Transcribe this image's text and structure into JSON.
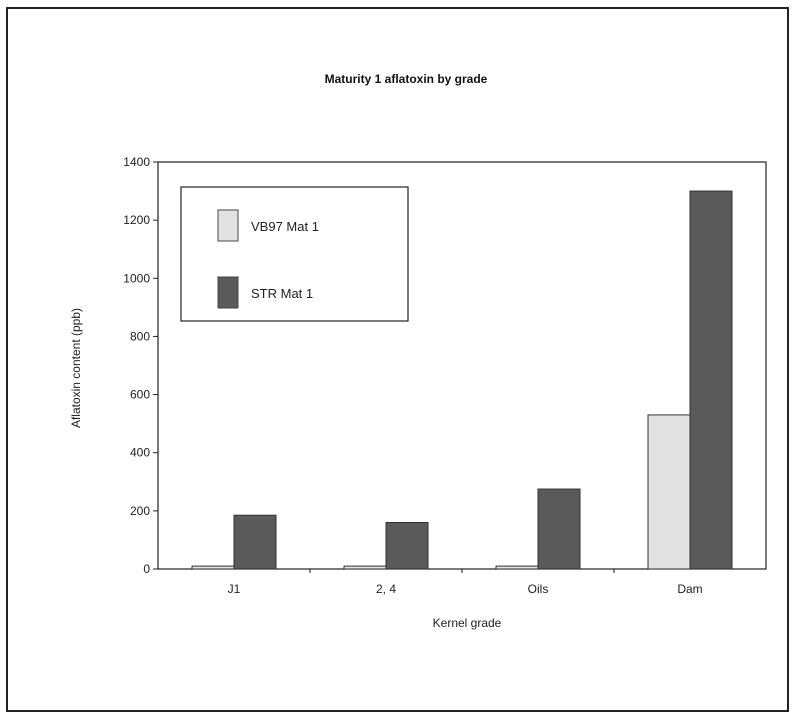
{
  "chart_data": {
    "type": "bar",
    "title": "Maturity 1 aflatoxin by grade",
    "xlabel": "Kernel grade",
    "ylabel": "Aflatoxin content (ppb)",
    "categories": [
      "J1",
      "2, 4",
      "Oils",
      "Dam"
    ],
    "ylim": [
      0,
      1400
    ],
    "yticks": [
      0,
      200,
      400,
      600,
      800,
      1000,
      1200,
      1400
    ],
    "legend_position": "top-left",
    "grid": false,
    "series": [
      {
        "name": "VB97 Mat 1",
        "color": "#e2e2e2",
        "values": [
          10,
          10,
          10,
          530
        ]
      },
      {
        "name": "STR Mat 1",
        "color": "#5a5a5a",
        "values": [
          185,
          160,
          275,
          1300
        ]
      }
    ]
  }
}
